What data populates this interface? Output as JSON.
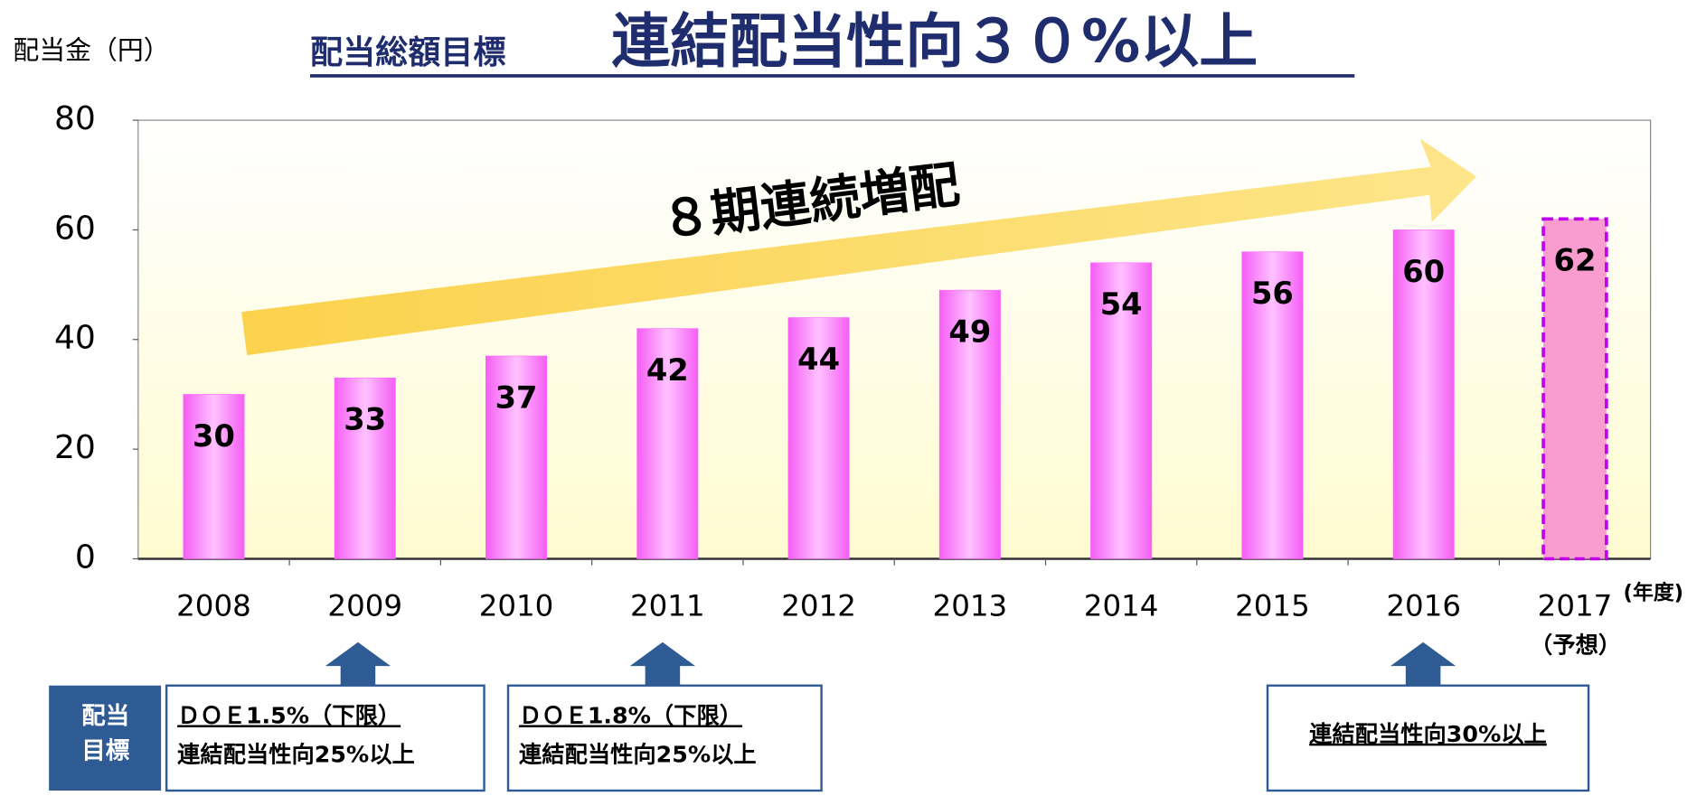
{
  "chart_data": {
    "type": "bar",
    "title_prefix": "配当総額目標",
    "title": "連結配当性向３０%以上",
    "y_label": "配当金（円）",
    "x_label": "(年度)",
    "x_note": "（予想）",
    "annotation": "８期連続増配",
    "categories": [
      "2008",
      "2009",
      "2010",
      "2011",
      "2012",
      "2013",
      "2014",
      "2015",
      "2016",
      "2017"
    ],
    "values": [
      30,
      33,
      37,
      42,
      44,
      49,
      54,
      56,
      60,
      62
    ],
    "forecast": [
      false,
      false,
      false,
      false,
      false,
      false,
      false,
      false,
      false,
      true
    ],
    "color": "#ff66ff",
    "forecast_color": "#f99cd0",
    "ylim": [
      0,
      80
    ],
    "yticks": [
      0,
      20,
      40,
      60,
      80
    ],
    "grid": false
  },
  "dividend_targets": {
    "label": [
      "配当",
      "目標"
    ],
    "items": [
      [
        "ＤＯＥ1.5%（下限）",
        "連結配当性向25%以上"
      ],
      [
        "ＤＯＥ1.8%（下限）",
        "連結配当性向25%以上"
      ],
      [
        "連結配当性向30%以上"
      ]
    ]
  }
}
